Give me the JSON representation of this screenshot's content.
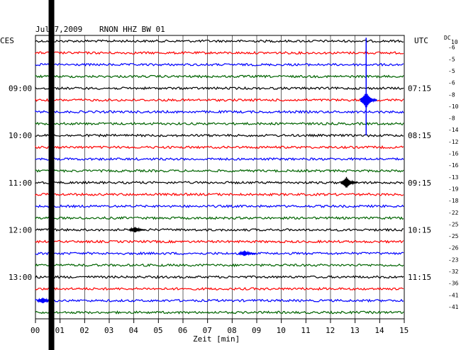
{
  "header": {
    "date": "Jul 7,2009",
    "station": "RNON HHZ BW 01",
    "left_tz": "CES",
    "right_tz": "UTC",
    "dc_label": "DC",
    "dc_sub": "10"
  },
  "chart_data": {
    "type": "line",
    "title": "Jul 7,2009   RNON HHZ BW 01",
    "xlabel": "Zeit [min]",
    "xlim": [
      0,
      15
    ],
    "x_ticks": [
      "00",
      "01",
      "02",
      "03",
      "04",
      "05",
      "06",
      "07",
      "08",
      "09",
      "10",
      "11",
      "12",
      "13",
      "14",
      "15"
    ],
    "trace_colors": [
      "#000000",
      "#ff0000",
      "#0000ff",
      "#006400"
    ],
    "trace_count": 24,
    "left_time_labels": [
      {
        "row": 4,
        "text": "09:00"
      },
      {
        "row": 8,
        "text": "10:00"
      },
      {
        "row": 12,
        "text": "11:00"
      },
      {
        "row": 16,
        "text": "12:00"
      },
      {
        "row": 20,
        "text": "13:00"
      }
    ],
    "right_time_labels": [
      {
        "row": 4,
        "text": "07:15"
      },
      {
        "row": 8,
        "text": "08:15"
      },
      {
        "row": 12,
        "text": "09:15"
      },
      {
        "row": 16,
        "text": "10:15"
      },
      {
        "row": 20,
        "text": "11:15"
      }
    ],
    "dc_offsets": [
      "-6",
      "-5",
      "-5",
      "-6",
      "-8",
      "-10",
      "-8",
      "-14",
      "-12",
      "-16",
      "-16",
      "-13",
      "-19",
      "-18",
      "-22",
      "-25",
      "-25",
      "-26",
      "-23",
      "-32",
      "-36",
      "-41",
      "-41"
    ],
    "events": [
      {
        "row": 5,
        "minute": 13.45,
        "color": "#0000ff",
        "amplitude": "large"
      },
      {
        "row": 12,
        "minute": 12.65,
        "color": "#000000",
        "amplitude": "medium"
      },
      {
        "row": 16,
        "minute": 4.05,
        "color": "#000000",
        "amplitude": "small"
      },
      {
        "row": 18,
        "minute": 8.5,
        "color": "#0000ff",
        "amplitude": "small"
      },
      {
        "row": 22,
        "minute": 0.3,
        "color": "#0000ff",
        "amplitude": "small"
      }
    ],
    "black_bar_minute": 0.65,
    "grid": true
  }
}
